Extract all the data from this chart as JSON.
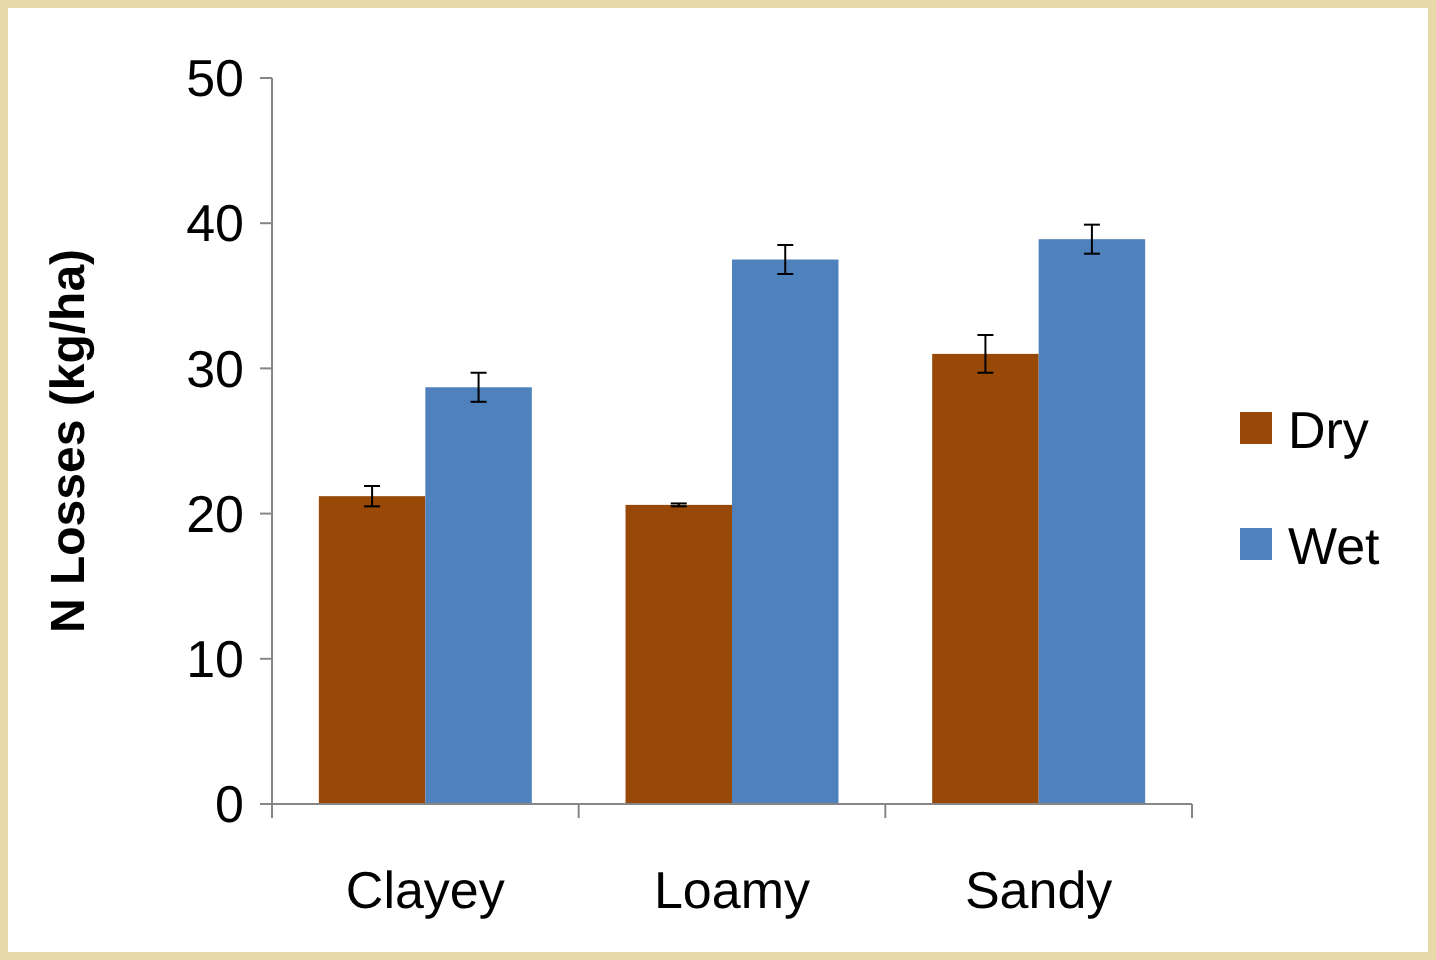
{
  "chart_data": {
    "type": "bar",
    "ylabel": "N Losses (kg/ha)",
    "categories": [
      "Clayey",
      "Loamy",
      "Sandy"
    ],
    "series": [
      {
        "name": "Dry",
        "color": "#984807",
        "values": [
          21.2,
          20.6,
          31.0
        ],
        "errors": [
          0.7,
          0.1,
          1.3
        ]
      },
      {
        "name": "Wet",
        "color": "#4f81bd",
        "values": [
          28.7,
          37.5,
          38.9
        ],
        "errors": [
          1.0,
          1.0,
          1.0
        ]
      }
    ],
    "ylim": [
      0,
      50
    ],
    "yticks": [
      0,
      10,
      20,
      30,
      40,
      50
    ],
    "grid": false,
    "legend": "right"
  }
}
